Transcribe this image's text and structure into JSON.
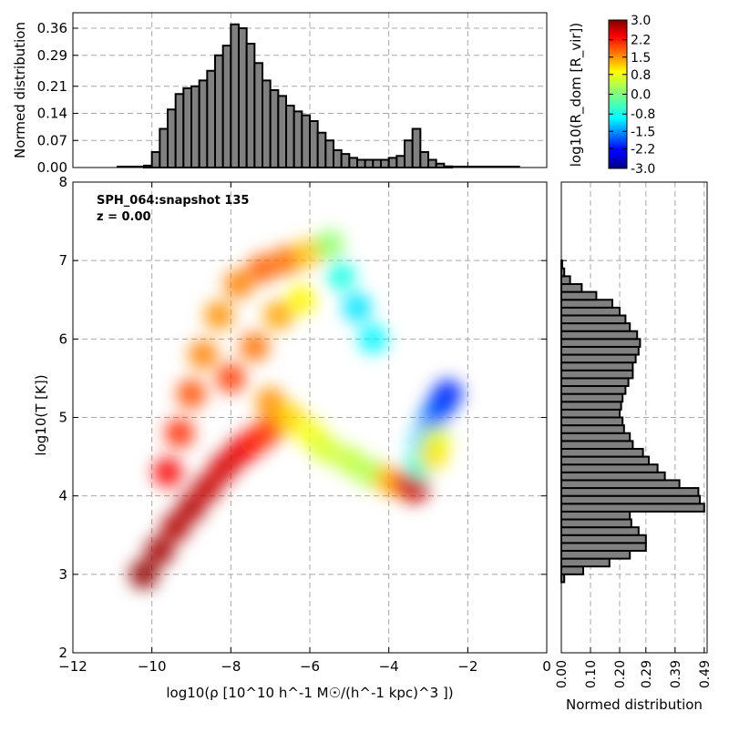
{
  "chart_data": [
    {
      "id": "phase-diagram",
      "type": "heatmap",
      "annotation": [
        "SPH_064:snapshot 135",
        "z = 0.00"
      ],
      "xlabel": "log10(ρ [10^10 h^-1 M☉/(h^-1 kpc)^3 ])",
      "ylabel": "log10(T [K])",
      "xlim": [
        -12,
        0
      ],
      "ylim": [
        2,
        8
      ],
      "xticks": [
        -12,
        -10,
        -8,
        -6,
        -4,
        -2,
        0
      ],
      "xtick_labels": [
        "−12",
        "−10",
        "−8",
        "−6",
        "−4",
        "−2",
        "0"
      ],
      "yticks": [
        2,
        3,
        4,
        5,
        6,
        7,
        8
      ],
      "ytick_labels": [
        "2",
        "3",
        "4",
        "5",
        "6",
        "7",
        "8"
      ],
      "grid": true,
      "colormap": "jet",
      "regions": [
        {
          "x": -10.2,
          "y": 3.0,
          "v": 2.9
        },
        {
          "x": -9.8,
          "y": 3.3,
          "v": 2.8
        },
        {
          "x": -9.4,
          "y": 3.6,
          "v": 2.7
        },
        {
          "x": -9.0,
          "y": 3.85,
          "v": 2.7
        },
        {
          "x": -8.6,
          "y": 4.1,
          "v": 2.6
        },
        {
          "x": -8.2,
          "y": 4.35,
          "v": 2.5
        },
        {
          "x": -7.8,
          "y": 4.55,
          "v": 2.4
        },
        {
          "x": -7.4,
          "y": 4.7,
          "v": 2.2
        },
        {
          "x": -7.0,
          "y": 4.85,
          "v": 1.9
        },
        {
          "x": -9.6,
          "y": 4.3,
          "v": 2.3
        },
        {
          "x": -9.3,
          "y": 4.8,
          "v": 2.0
        },
        {
          "x": -9.0,
          "y": 5.3,
          "v": 1.8
        },
        {
          "x": -8.7,
          "y": 5.8,
          "v": 1.5
        },
        {
          "x": -8.3,
          "y": 6.3,
          "v": 1.4
        },
        {
          "x": -7.8,
          "y": 6.7,
          "v": 1.5
        },
        {
          "x": -7.2,
          "y": 6.9,
          "v": 1.7
        },
        {
          "x": -6.6,
          "y": 7.0,
          "v": 1.6
        },
        {
          "x": -6.0,
          "y": 7.1,
          "v": 1.1
        },
        {
          "x": -5.5,
          "y": 7.2,
          "v": 0.1
        },
        {
          "x": -5.2,
          "y": 6.8,
          "v": -0.6
        },
        {
          "x": -4.8,
          "y": 6.4,
          "v": -0.9
        },
        {
          "x": -4.4,
          "y": 6.0,
          "v": -0.8
        },
        {
          "x": -8.0,
          "y": 5.5,
          "v": 1.9
        },
        {
          "x": -7.4,
          "y": 5.9,
          "v": 1.6
        },
        {
          "x": -6.8,
          "y": 6.3,
          "v": 1.3
        },
        {
          "x": -6.2,
          "y": 6.5,
          "v": 0.8
        },
        {
          "x": -7.0,
          "y": 5.2,
          "v": 1.4
        },
        {
          "x": -6.5,
          "y": 5.0,
          "v": 1.0
        },
        {
          "x": -6.0,
          "y": 4.8,
          "v": 0.7
        },
        {
          "x": -5.6,
          "y": 4.6,
          "v": 0.5
        },
        {
          "x": -5.0,
          "y": 4.45,
          "v": 0.4
        },
        {
          "x": -4.5,
          "y": 4.3,
          "v": 0.3
        },
        {
          "x": -4.0,
          "y": 4.2,
          "v": 1.2
        },
        {
          "x": -3.6,
          "y": 4.15,
          "v": 1.8
        },
        {
          "x": -3.35,
          "y": 4.1,
          "v": 2.6
        },
        {
          "x": -3.25,
          "y": 4.4,
          "v": -0.6
        },
        {
          "x": -3.1,
          "y": 4.7,
          "v": -1.0
        },
        {
          "x": -2.9,
          "y": 4.95,
          "v": -1.5
        },
        {
          "x": -2.7,
          "y": 5.15,
          "v": -1.8
        },
        {
          "x": -2.5,
          "y": 5.3,
          "v": -2.0
        },
        {
          "x": -2.8,
          "y": 4.7,
          "v": 0.6
        },
        {
          "x": -2.9,
          "y": 4.5,
          "v": 0.9
        }
      ]
    },
    {
      "id": "top-histogram",
      "type": "bar",
      "ylabel": "Normed distribution",
      "xlim": [
        -12,
        0
      ],
      "ylim": [
        0,
        0.4
      ],
      "yticks": [
        0,
        0.07,
        0.14,
        0.21,
        0.29,
        0.36
      ],
      "ytick_labels": [
        "0.00",
        "0.07",
        "0.14",
        "0.21",
        "0.29",
        "0.36"
      ],
      "bin_width": 0.2,
      "bin_start": -10.2,
      "values": [
        0.005,
        0.04,
        0.1,
        0.15,
        0.19,
        0.205,
        0.21,
        0.225,
        0.25,
        0.29,
        0.315,
        0.37,
        0.36,
        0.32,
        0.27,
        0.225,
        0.2,
        0.185,
        0.16,
        0.145,
        0.135,
        0.12,
        0.09,
        0.07,
        0.045,
        0.035,
        0.025,
        0.02,
        0.02,
        0.02,
        0.02,
        0.025,
        0.03,
        0.07,
        0.1,
        0.04,
        0.02,
        0.01,
        0.003
      ]
    },
    {
      "id": "right-histogram",
      "type": "bar",
      "orientation": "horizontal",
      "xlabel": "Normed distribution",
      "xlim": [
        0,
        0.5
      ],
      "xticks": [
        0,
        0.1,
        0.2,
        0.29,
        0.39,
        0.49
      ],
      "xtick_labels": [
        "0.00",
        "0.10",
        "0.20",
        "0.29",
        "0.39",
        "0.49"
      ],
      "ylim": [
        2,
        8
      ],
      "yticks": [
        2,
        3,
        4,
        5,
        6,
        7,
        8
      ],
      "bin_height": 0.1,
      "bin_start": 2.9,
      "values": [
        0.01,
        0.075,
        0.165,
        0.235,
        0.29,
        0.29,
        0.265,
        0.24,
        0.235,
        0.49,
        0.475,
        0.47,
        0.405,
        0.355,
        0.33,
        0.3,
        0.28,
        0.245,
        0.235,
        0.215,
        0.21,
        0.2,
        0.205,
        0.21,
        0.22,
        0.23,
        0.245,
        0.245,
        0.255,
        0.265,
        0.27,
        0.26,
        0.235,
        0.22,
        0.2,
        0.175,
        0.12,
        0.07,
        0.03,
        0.01,
        0.003
      ]
    },
    {
      "id": "colorbar",
      "type": "colorbar",
      "label": "log10(R_dom [R_vir])",
      "range": [
        -3,
        3
      ],
      "ticks": [
        3.0,
        2.2,
        1.5,
        0.8,
        0.0,
        -0.8,
        -1.5,
        -2.2,
        -3.0
      ],
      "tick_labels": [
        "3.0",
        "2.2",
        "1.5",
        "0.8",
        "0.0",
        "-0.8",
        "-1.5",
        "-2.2",
        "-3.0"
      ],
      "colormap": "jet"
    }
  ]
}
